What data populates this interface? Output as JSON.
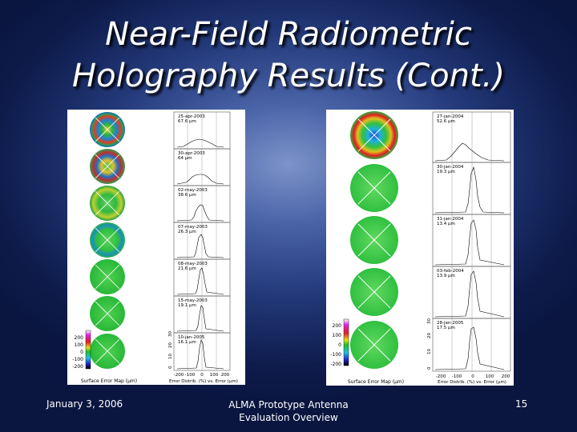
{
  "slide": {
    "title_line1": "Near-Field Radiometric",
    "title_line2": "Holography Results (Cont.)"
  },
  "footer": {
    "date": "January 3, 2006",
    "center_line1": "ALMA Prototype Antenna",
    "center_line2": "Evaluation Overview",
    "page": "15"
  },
  "left_figure": {
    "entries": [
      {
        "date": "25-apr-2003",
        "rms": "67.6 μm"
      },
      {
        "date": "30-apr-2003",
        "rms": "64 μm"
      },
      {
        "date": "02-may-2003",
        "rms": "38.6 μm"
      },
      {
        "date": "07-may-2003",
        "rms": "26.3 μm"
      },
      {
        "date": "08-may-2003",
        "rms": "21.6 μm"
      },
      {
        "date": "15-may-2003",
        "rms": "19.1 μm"
      },
      {
        "date": "10-jan-2005",
        "rms": "16.1 μm"
      }
    ],
    "colorbar_ticks": [
      "200",
      "100",
      "0",
      "-100",
      "-200"
    ],
    "yaxis_ticks": [
      "30",
      "20",
      "10",
      "0"
    ],
    "xaxis_ticks": [
      "-200",
      "-100",
      "0",
      "100",
      "200"
    ],
    "map_caption": "Surface Error Map (μm)",
    "hist_caption": "Error Distrib. (%) vs. Error (μm)"
  },
  "right_figure": {
    "entries": [
      {
        "date": "27-jan-2004",
        "rms": "52.6 μm"
      },
      {
        "date": "30-jan-2004",
        "rms": "19.3 μm"
      },
      {
        "date": "31-jan-2004",
        "rms": "13.4 μm"
      },
      {
        "date": "03-feb-2004",
        "rms": "13.9 μm"
      },
      {
        "date": "28-jan-2005",
        "rms": "17.5 μm"
      }
    ],
    "colorbar_ticks": [
      "200",
      "100",
      "0",
      "-100",
      "-200"
    ],
    "yaxis_ticks": [
      "30",
      "20",
      "10",
      "0"
    ],
    "xaxis_ticks": [
      "-200",
      "-100",
      "0",
      "100",
      "200"
    ],
    "map_caption": "Surface Error Map (μm)",
    "hist_caption": "Error Distrib. (%) vs. Error (μm)"
  }
}
